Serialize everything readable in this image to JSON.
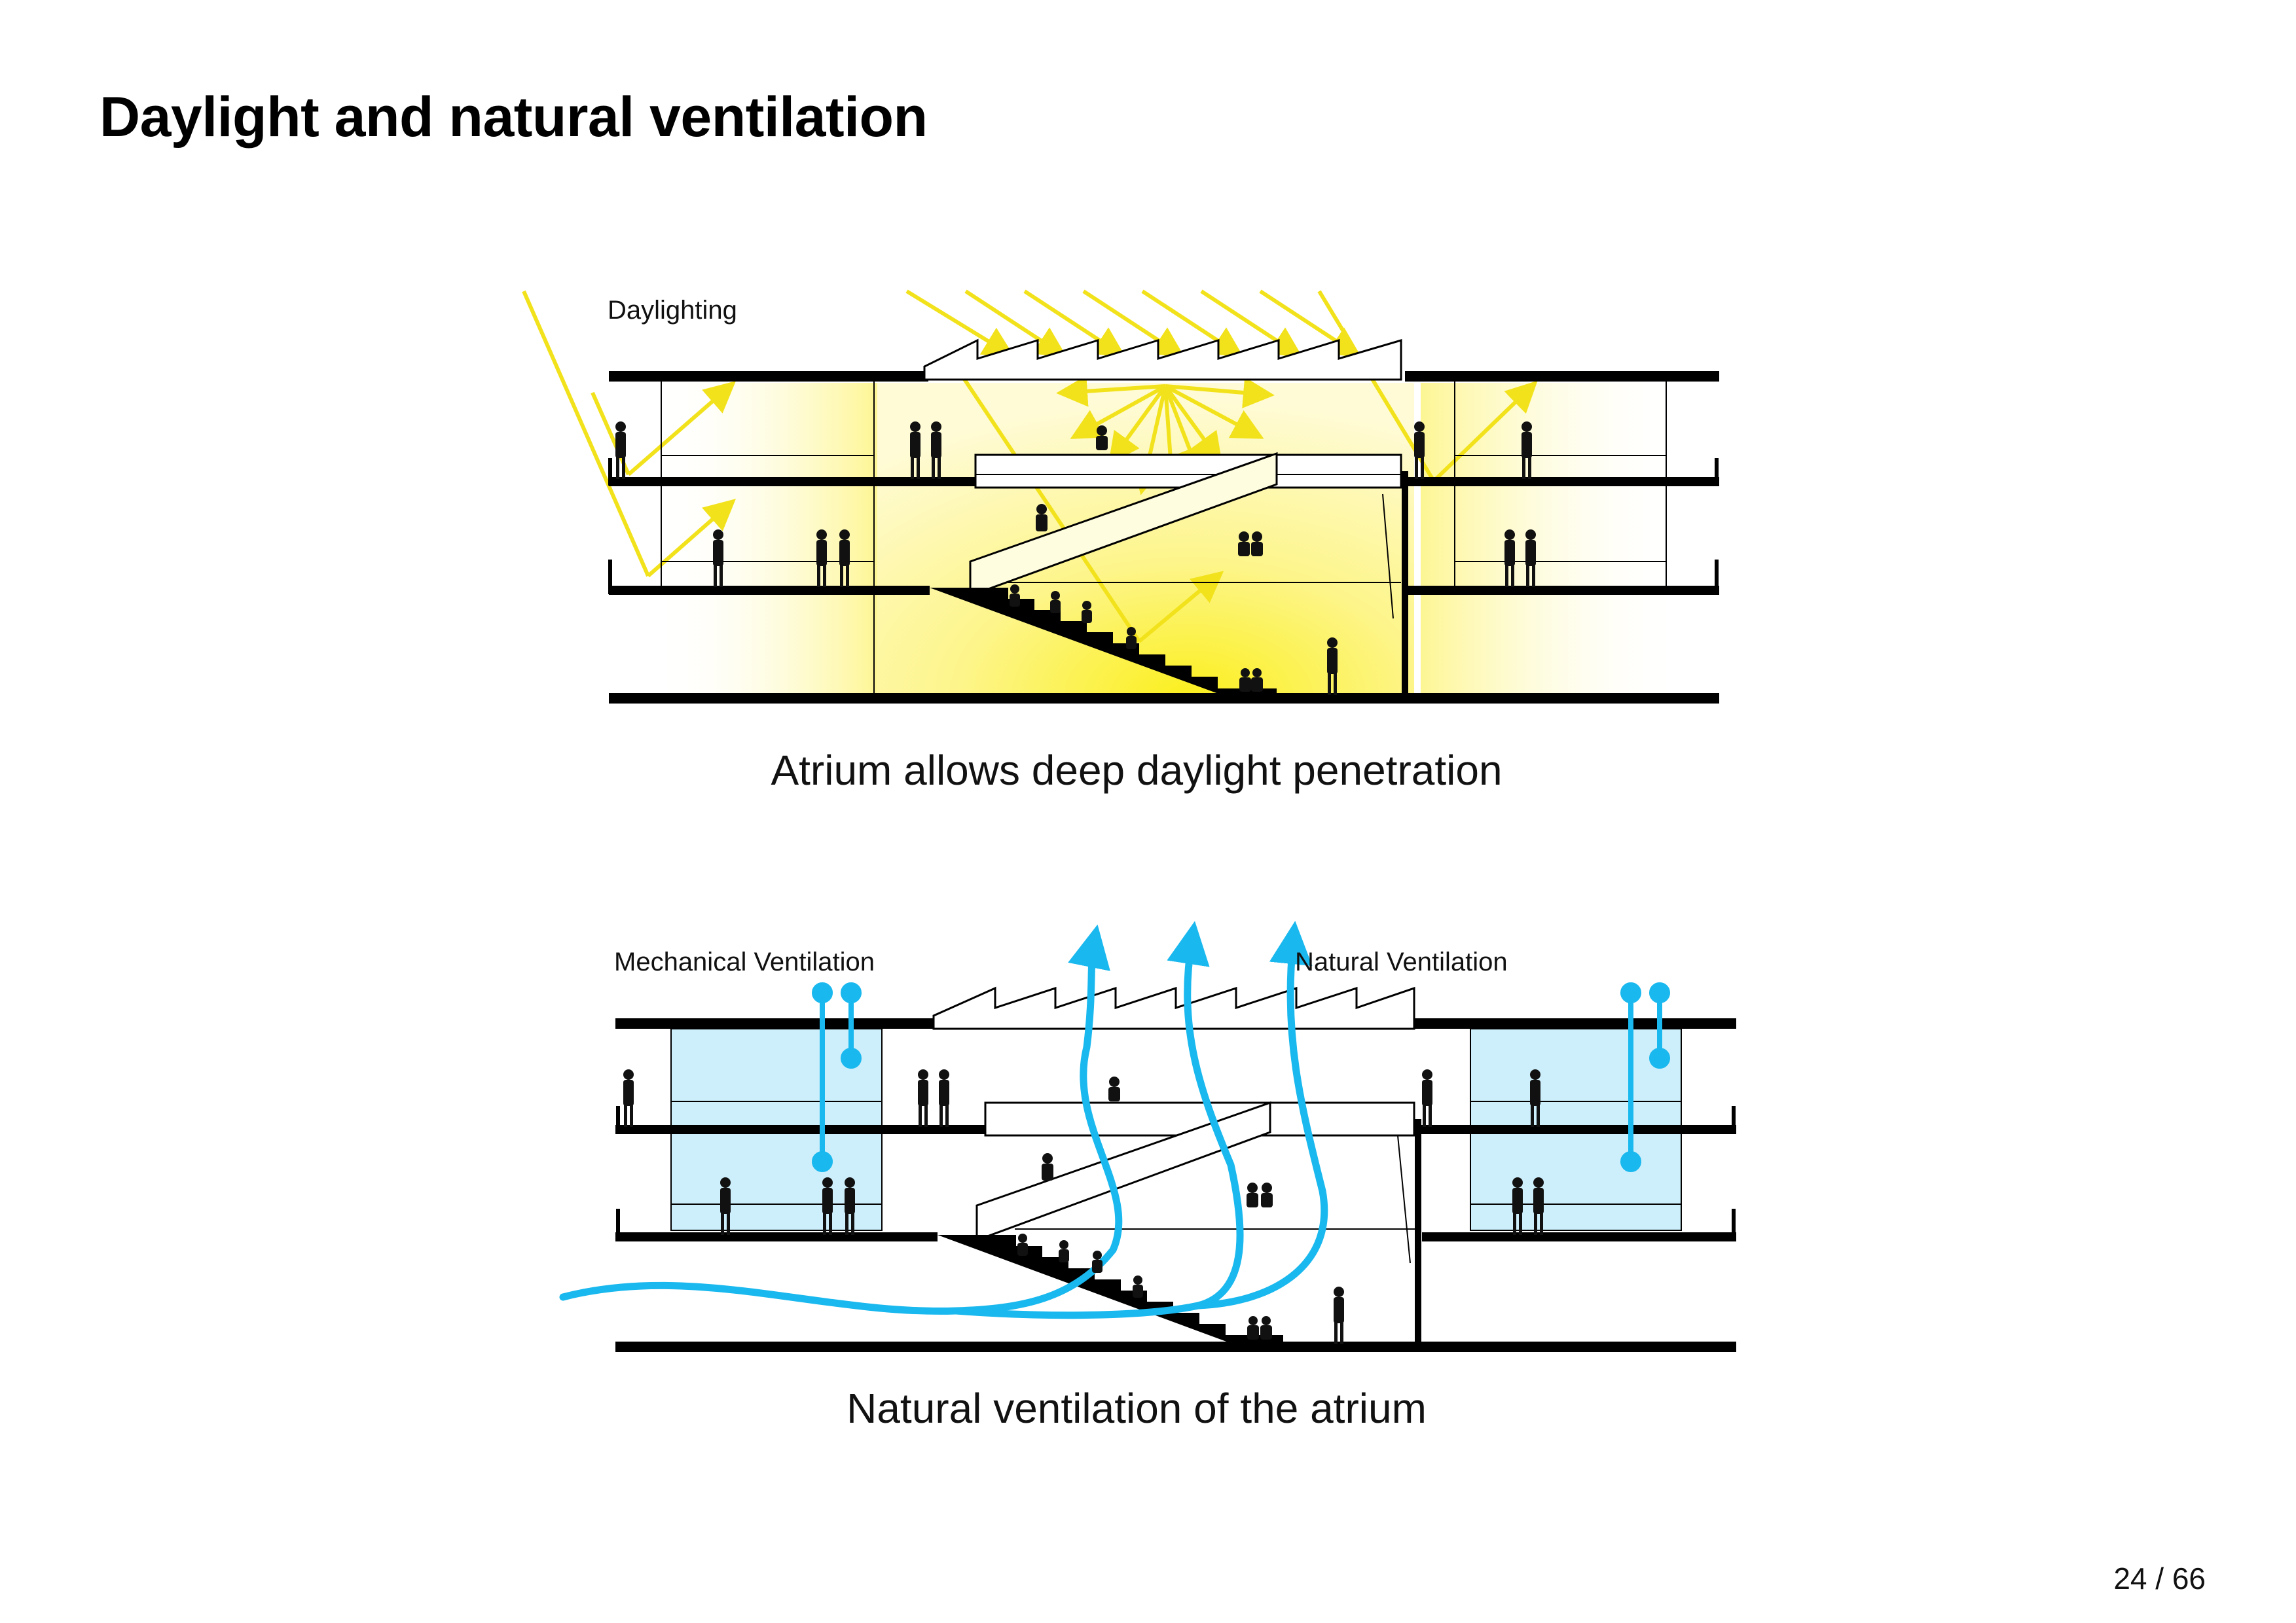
{
  "slide": {
    "title": "Daylight and natural ventilation",
    "page_number": "24 / 66"
  },
  "diagram_top": {
    "label": "Daylighting",
    "caption": "Atrium allows deep daylight penetration",
    "colors": {
      "sun": "#f6e722",
      "glow": "#fdf35a"
    }
  },
  "diagram_bottom": {
    "label_left": "Mechanical Ventilation",
    "label_right": "Natural Ventilation",
    "caption": "Natural ventilation of the atrium",
    "colors": {
      "air": "#19b8ee",
      "glass": "#cdeffb"
    }
  }
}
